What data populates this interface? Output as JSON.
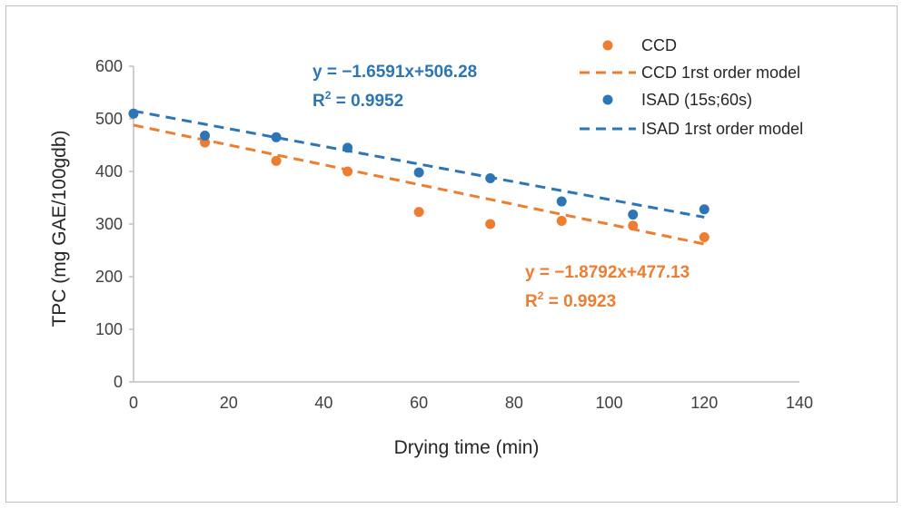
{
  "chart_data": {
    "type": "scatter",
    "title": "",
    "xlabel": "Drying time (min)",
    "ylabel": "TPC (mg GAE/100gdb)",
    "xlim": [
      0,
      140
    ],
    "ylim": [
      0,
      600
    ],
    "x_ticks": [
      "0",
      "20",
      "40",
      "60",
      "80",
      "100",
      "120",
      "140"
    ],
    "y_ticks": [
      "0",
      "100",
      "200",
      "300",
      "400",
      "500",
      "600"
    ],
    "grid": false,
    "legend_position": "top-right",
    "series": [
      {
        "name": "CCD",
        "kind": "scatter",
        "color": "#ED7D31",
        "x": [
          0,
          15,
          30,
          45,
          60,
          75,
          90,
          105,
          120
        ],
        "y": [
          510,
          455,
          420,
          400,
          323,
          300,
          306,
          297,
          275
        ]
      },
      {
        "name": "CCD 1rst order model",
        "kind": "line",
        "style": "dashed",
        "color": "#ED7D31",
        "x": [
          0,
          120
        ],
        "y": [
          488,
          262
        ]
      },
      {
        "name": "ISAD (15s;60s)",
        "kind": "scatter",
        "color": "#2E75B6",
        "x": [
          0,
          15,
          30,
          45,
          60,
          75,
          90,
          105,
          120
        ],
        "y": [
          510,
          468,
          465,
          445,
          398,
          387,
          343,
          318,
          328
        ]
      },
      {
        "name": "ISAD 1rst order model",
        "kind": "line",
        "style": "dashed",
        "color": "#2E75B6",
        "x": [
          0,
          120
        ],
        "y": [
          515,
          313
        ]
      }
    ],
    "annotations": [
      {
        "series": "ISAD",
        "color": "#2E75B6",
        "equation": "y = −1.6591x+506.28",
        "r2_prefix": "R",
        "r2_sup": "2",
        "r2_value": " = 0.9952"
      },
      {
        "series": "CCD",
        "color": "#ED7D31",
        "equation": "y = −1.8792x+477.13",
        "r2_prefix": "R",
        "r2_sup": "2",
        "r2_value": " = 0.9923"
      }
    ]
  }
}
